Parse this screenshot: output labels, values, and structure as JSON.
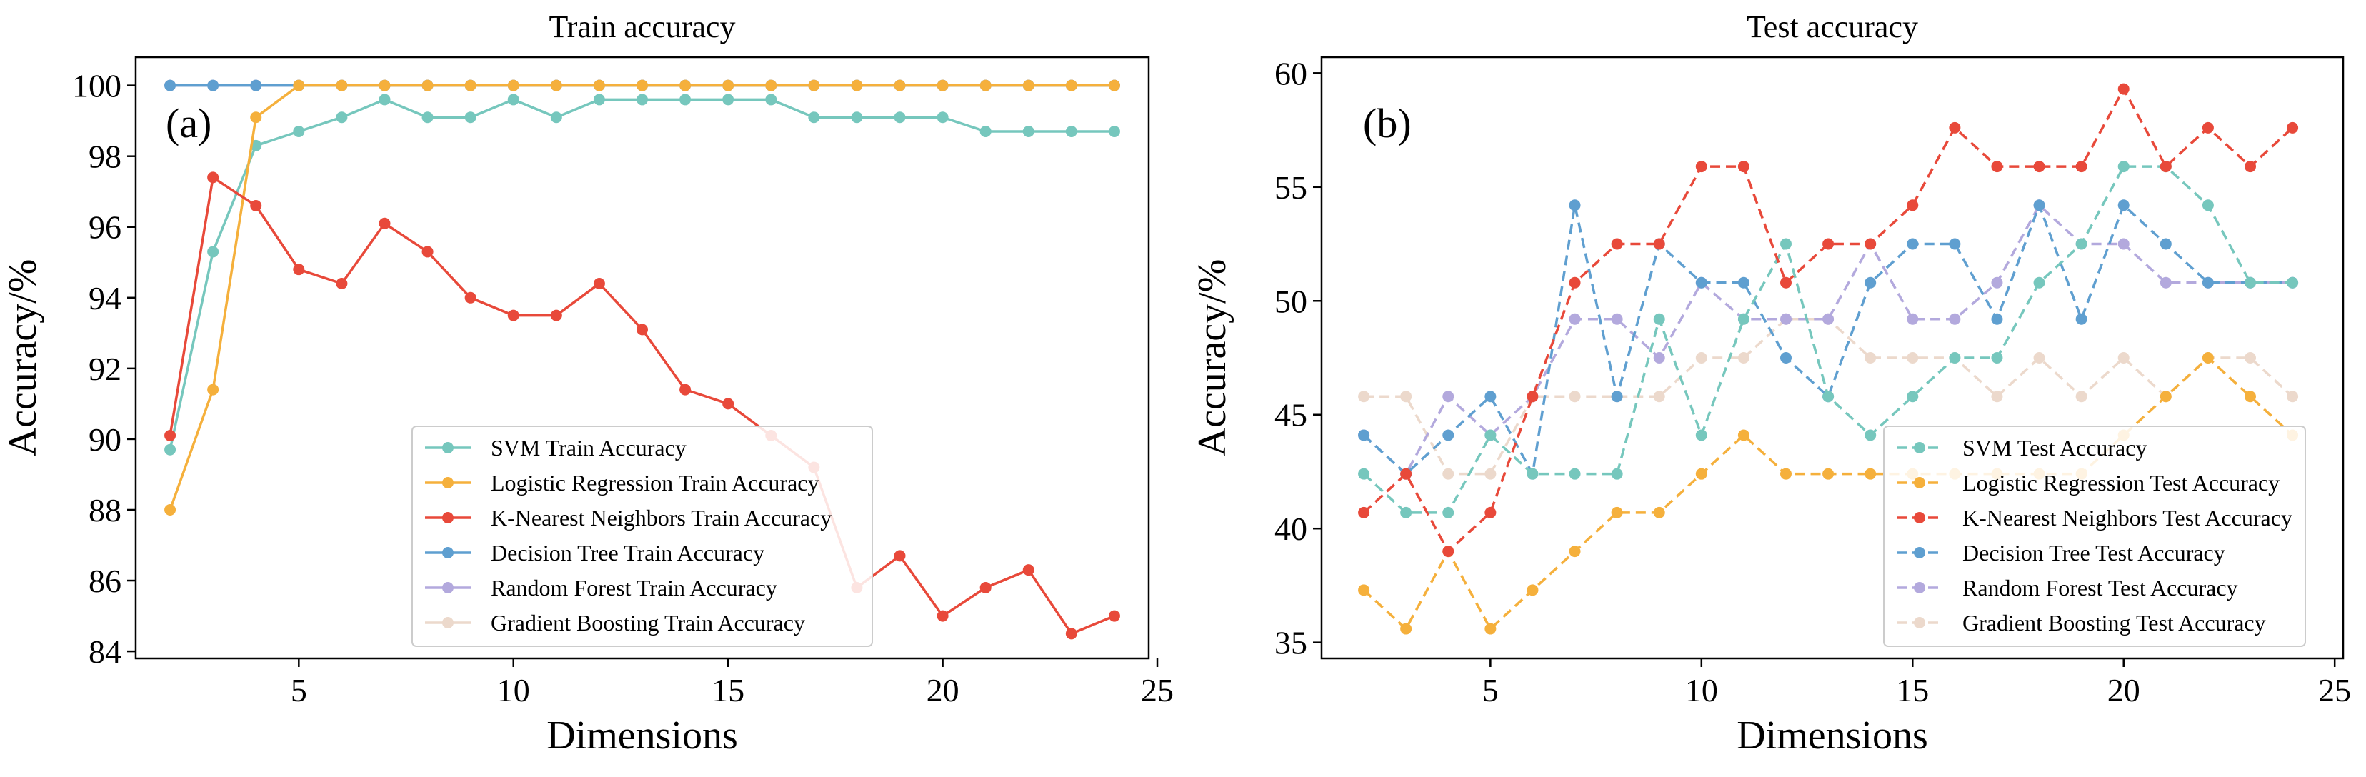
{
  "chart_data": [
    {
      "type": "line",
      "panel_label": "(a)",
      "title": "Train accuracy",
      "xlabel": "Dimensions",
      "ylabel": "Accuracy/%",
      "xlim": [
        1.2,
        24.8
      ],
      "ylim": [
        83.8,
        100.8
      ],
      "xticks": [
        5,
        10,
        15,
        20,
        25
      ],
      "yticks": [
        84,
        86,
        88,
        90,
        92,
        94,
        96,
        98,
        100
      ],
      "grid": false,
      "legend_position": "lower-right",
      "x": [
        2,
        3,
        4,
        5,
        6,
        7,
        8,
        9,
        10,
        11,
        12,
        13,
        14,
        15,
        16,
        17,
        18,
        19,
        20,
        21,
        22,
        23,
        24
      ],
      "series": [
        {
          "name": "SVM Train Accuracy",
          "color": "#76c7bd",
          "values": [
            89.7,
            95.3,
            98.3,
            98.7,
            99.1,
            99.6,
            99.1,
            99.1,
            99.6,
            99.1,
            99.6,
            99.6,
            99.6,
            99.6,
            99.6,
            99.1,
            99.1,
            99.1,
            99.1,
            98.7,
            98.7,
            98.7,
            98.7
          ]
        },
        {
          "name": "Logistic Regression Train Accuracy",
          "color": "#f5b03c",
          "values": [
            88.0,
            91.4,
            99.1,
            100,
            100,
            100,
            100,
            100,
            100,
            100,
            100,
            100,
            100,
            100,
            100,
            100,
            100,
            100,
            100,
            100,
            100,
            100,
            100
          ]
        },
        {
          "name": "K-Nearest Neighbors Train Accuracy",
          "color": "#e8493a",
          "values": [
            90.1,
            97.4,
            96.6,
            94.8,
            94.4,
            96.1,
            95.3,
            94.0,
            93.5,
            93.5,
            94.4,
            93.1,
            91.4,
            91.0,
            90.1,
            89.2,
            85.8,
            86.7,
            85.0,
            85.8,
            86.3,
            84.5,
            85.0
          ]
        },
        {
          "name": "Decision Tree Train Accuracy",
          "color": "#5f9fd0",
          "values": [
            100,
            100,
            100,
            100,
            100,
            100,
            100,
            100,
            100,
            100,
            100,
            100,
            100,
            100,
            100,
            100,
            100,
            100,
            100,
            100,
            100,
            100,
            100
          ]
        },
        {
          "name": "Random Forest Train Accuracy",
          "color": "#b3a9dd",
          "values": [
            100,
            100,
            100,
            100,
            100,
            100,
            100,
            100,
            100,
            100,
            100,
            100,
            100,
            100,
            100,
            100,
            100,
            100,
            100,
            100,
            100,
            100,
            100
          ]
        },
        {
          "name": "Gradient Boosting Train Accuracy",
          "color": "#ecd9cc",
          "values": [
            100,
            100,
            100,
            100,
            100,
            100,
            100,
            100,
            100,
            100,
            100,
            100,
            100,
            100,
            100,
            100,
            100,
            100,
            100,
            100,
            100,
            100,
            100
          ]
        }
      ]
    },
    {
      "type": "line",
      "panel_label": "(b)",
      "title": "Test accuracy",
      "xlabel": "Dimensions",
      "ylabel": "Accuracy/%",
      "xlim": [
        1.0,
        25.2
      ],
      "ylim": [
        34.3,
        60.7
      ],
      "xticks": [
        5,
        10,
        15,
        20,
        25
      ],
      "yticks": [
        35,
        40,
        45,
        50,
        55,
        60
      ],
      "grid": false,
      "legend_position": "lower-right",
      "line_style": "dashed",
      "x": [
        2,
        3,
        4,
        5,
        6,
        7,
        8,
        9,
        10,
        11,
        12,
        13,
        14,
        15,
        16,
        17,
        18,
        19,
        20,
        21,
        22,
        23,
        24
      ],
      "series": [
        {
          "name": "SVM Test Accuracy",
          "color": "#76c7bd",
          "values": [
            42.4,
            40.7,
            40.7,
            44.1,
            42.4,
            42.4,
            42.4,
            49.2,
            44.1,
            49.2,
            52.5,
            45.8,
            44.1,
            45.8,
            47.5,
            47.5,
            50.8,
            52.5,
            55.9,
            55.9,
            54.2,
            50.8,
            50.8
          ]
        },
        {
          "name": "Logistic Regression Test Accuracy",
          "color": "#f5b03c",
          "values": [
            37.3,
            35.6,
            39.0,
            35.6,
            37.3,
            39.0,
            40.7,
            40.7,
            42.4,
            44.1,
            42.4,
            42.4,
            42.4,
            42.4,
            42.4,
            42.4,
            42.4,
            42.4,
            44.1,
            45.8,
            47.5,
            45.8,
            44.1
          ]
        },
        {
          "name": "K-Nearest Neighbors Test Accuracy",
          "color": "#e8493a",
          "values": [
            40.7,
            42.4,
            39.0,
            40.7,
            45.8,
            50.8,
            52.5,
            52.5,
            55.9,
            55.9,
            50.8,
            52.5,
            52.5,
            54.2,
            57.6,
            55.9,
            55.9,
            55.9,
            59.3,
            55.9,
            57.6,
            55.9,
            57.6
          ]
        },
        {
          "name": "Decision Tree Test Accuracy",
          "color": "#5f9fd0",
          "values": [
            44.1,
            42.4,
            44.1,
            45.8,
            42.4,
            54.2,
            45.8,
            52.5,
            50.8,
            50.8,
            47.5,
            45.8,
            50.8,
            52.5,
            52.5,
            49.2,
            54.2,
            49.2,
            54.2,
            52.5,
            50.8,
            50.8,
            50.8
          ]
        },
        {
          "name": "Random Forest Test Accuracy",
          "color": "#b3a9dd",
          "values": [
            44.1,
            42.4,
            45.8,
            44.1,
            45.8,
            49.2,
            49.2,
            47.5,
            50.8,
            49.2,
            49.2,
            49.2,
            52.5,
            49.2,
            49.2,
            50.8,
            54.2,
            52.5,
            52.5,
            50.8,
            50.8,
            50.8,
            50.8
          ]
        },
        {
          "name": "Gradient Boosting Test Accuracy",
          "color": "#ecd9cc",
          "values": [
            45.8,
            45.8,
            42.4,
            42.4,
            45.8,
            45.8,
            45.8,
            45.8,
            47.5,
            47.5,
            49.2,
            49.2,
            47.5,
            47.5,
            47.5,
            45.8,
            47.5,
            45.8,
            47.5,
            45.8,
            47.5,
            47.5,
            45.8
          ]
        }
      ]
    }
  ]
}
